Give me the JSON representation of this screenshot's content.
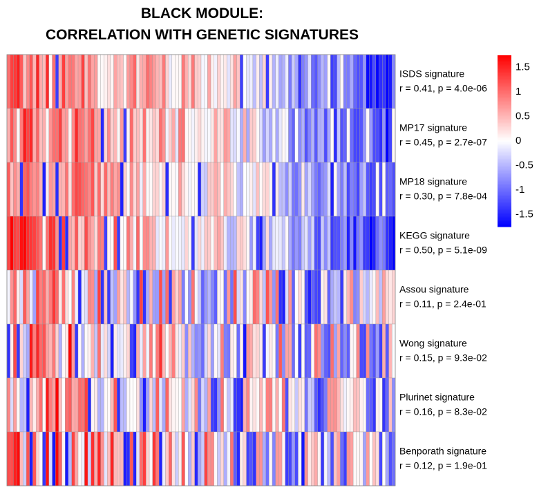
{
  "title_lines": [
    "BLACK MODULE:",
    "CORRELATION WITH GENETIC SIGNATURES"
  ],
  "chart_data": {
    "type": "heatmap",
    "title": "BLACK MODULE: CORRELATION WITH GENETIC SIGNATURES",
    "n_columns": 120,
    "value_range": [
      -1.75,
      1.75
    ],
    "colorscale": [
      "#0000ff",
      "#ffffff",
      "#ff0000"
    ],
    "legend_ticks": [
      1.5,
      1,
      0.5,
      0,
      -0.5,
      -1,
      -1.5
    ],
    "legend_tick_labels": [
      "1.5",
      "1",
      "0.5",
      "0",
      "-0.5",
      "-1",
      "-1.5"
    ],
    "legend_position": "right",
    "rows": [
      {
        "name": "ISDS signature",
        "stats": "r = 0.41, p = 4.0e-06",
        "r": 0.41,
        "p": "4.0e-06",
        "trend": [
          1.0,
          0.8,
          0.55,
          0.3,
          -0.1,
          -0.8,
          -1.35
        ]
      },
      {
        "name": "MP17 signature",
        "stats": "r = 0.45, p = 2.7e-07",
        "r": 0.45,
        "p": "2.7e-07",
        "trend": [
          1.1,
          0.9,
          0.6,
          0.3,
          -0.2,
          -0.9,
          -1.35
        ]
      },
      {
        "name": "MP18 signature",
        "stats": "r = 0.30, p = 7.8e-04",
        "r": 0.3,
        "p": "7.8e-04",
        "trend": [
          0.6,
          0.7,
          0.4,
          0.2,
          -0.2,
          -0.6,
          -0.9
        ]
      },
      {
        "name": "KEGG signature",
        "stats": "r = 0.50, p = 5.1e-09",
        "r": 0.5,
        "p": "5.1e-09",
        "trend": [
          1.3,
          0.9,
          0.5,
          0.2,
          -0.2,
          -0.9,
          -1.5
        ]
      },
      {
        "name": "Assou signature",
        "stats": "r = 0.11, p = 2.4e-01",
        "r": 0.11,
        "p": "2.4e-01",
        "trend": [
          0.5,
          0.6,
          0.3,
          0.1,
          0.0,
          -0.2,
          -0.4
        ]
      },
      {
        "name": "Wong signature",
        "stats": "r = 0.15, p = 9.3e-02",
        "r": 0.15,
        "p": "9.3e-02",
        "trend": [
          0.5,
          0.6,
          0.3,
          0.1,
          0.0,
          -0.2,
          -0.4
        ]
      },
      {
        "name": "Plurinet signature",
        "stats": "r = 0.16, p = 8.3e-02",
        "r": 0.16,
        "p": "8.3e-02",
        "trend": [
          0.5,
          0.6,
          0.3,
          0.1,
          0.0,
          -0.2,
          -0.4
        ]
      },
      {
        "name": "Benporath signature",
        "stats": "r = 0.12, p = 1.9e-01",
        "r": 0.12,
        "p": "1.9e-01",
        "trend": [
          0.5,
          0.6,
          0.3,
          0.1,
          0.0,
          -0.2,
          -0.4
        ]
      }
    ]
  }
}
